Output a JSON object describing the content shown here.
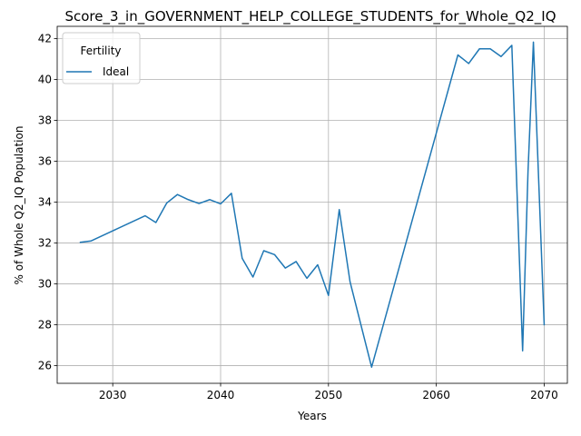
{
  "chart_data": {
    "type": "line",
    "title": "Score_3_in_GOVERNMENT_HELP_COLLEGE_STUDENTS_for_Whole_Q2_IQ",
    "xlabel": "Years",
    "ylabel": "% of Whole Q2_IQ Population",
    "xlim": [
      2024.85,
      2072.15
    ],
    "ylim": [
      25.13,
      42.6
    ],
    "xticks": [
      2030,
      2040,
      2050,
      2060,
      2070
    ],
    "yticks": [
      26,
      28,
      30,
      32,
      34,
      36,
      38,
      40,
      42
    ],
    "grid": true,
    "legend": {
      "title": "Fertility",
      "placement": "top-left"
    },
    "series": [
      {
        "name": "Ideal",
        "color": "#1f77b4",
        "points": [
          [
            2027,
            32.03
          ],
          [
            2028,
            32.1
          ],
          [
            2033,
            33.33
          ],
          [
            2034,
            33.0
          ],
          [
            2035,
            33.95
          ],
          [
            2036,
            34.37
          ],
          [
            2037,
            34.12
          ],
          [
            2038,
            33.93
          ],
          [
            2039,
            34.12
          ],
          [
            2040,
            33.91
          ],
          [
            2041,
            34.43
          ],
          [
            2042,
            31.25
          ],
          [
            2043,
            30.33
          ],
          [
            2044,
            31.62
          ],
          [
            2045,
            31.43
          ],
          [
            2046,
            30.77
          ],
          [
            2047,
            31.09
          ],
          [
            2048,
            30.27
          ],
          [
            2049,
            30.93
          ],
          [
            2050,
            29.43
          ],
          [
            2051,
            33.63
          ],
          [
            2052,
            30.1
          ],
          [
            2054,
            25.92
          ],
          [
            2062,
            41.2
          ],
          [
            2063,
            40.78
          ],
          [
            2064,
            41.5
          ],
          [
            2065,
            41.5
          ],
          [
            2066,
            41.12
          ],
          [
            2067,
            41.67
          ],
          [
            2068,
            26.72
          ],
          [
            2068.5,
            35.5
          ],
          [
            2069,
            41.83
          ],
          [
            2070,
            28.0
          ]
        ]
      }
    ]
  }
}
